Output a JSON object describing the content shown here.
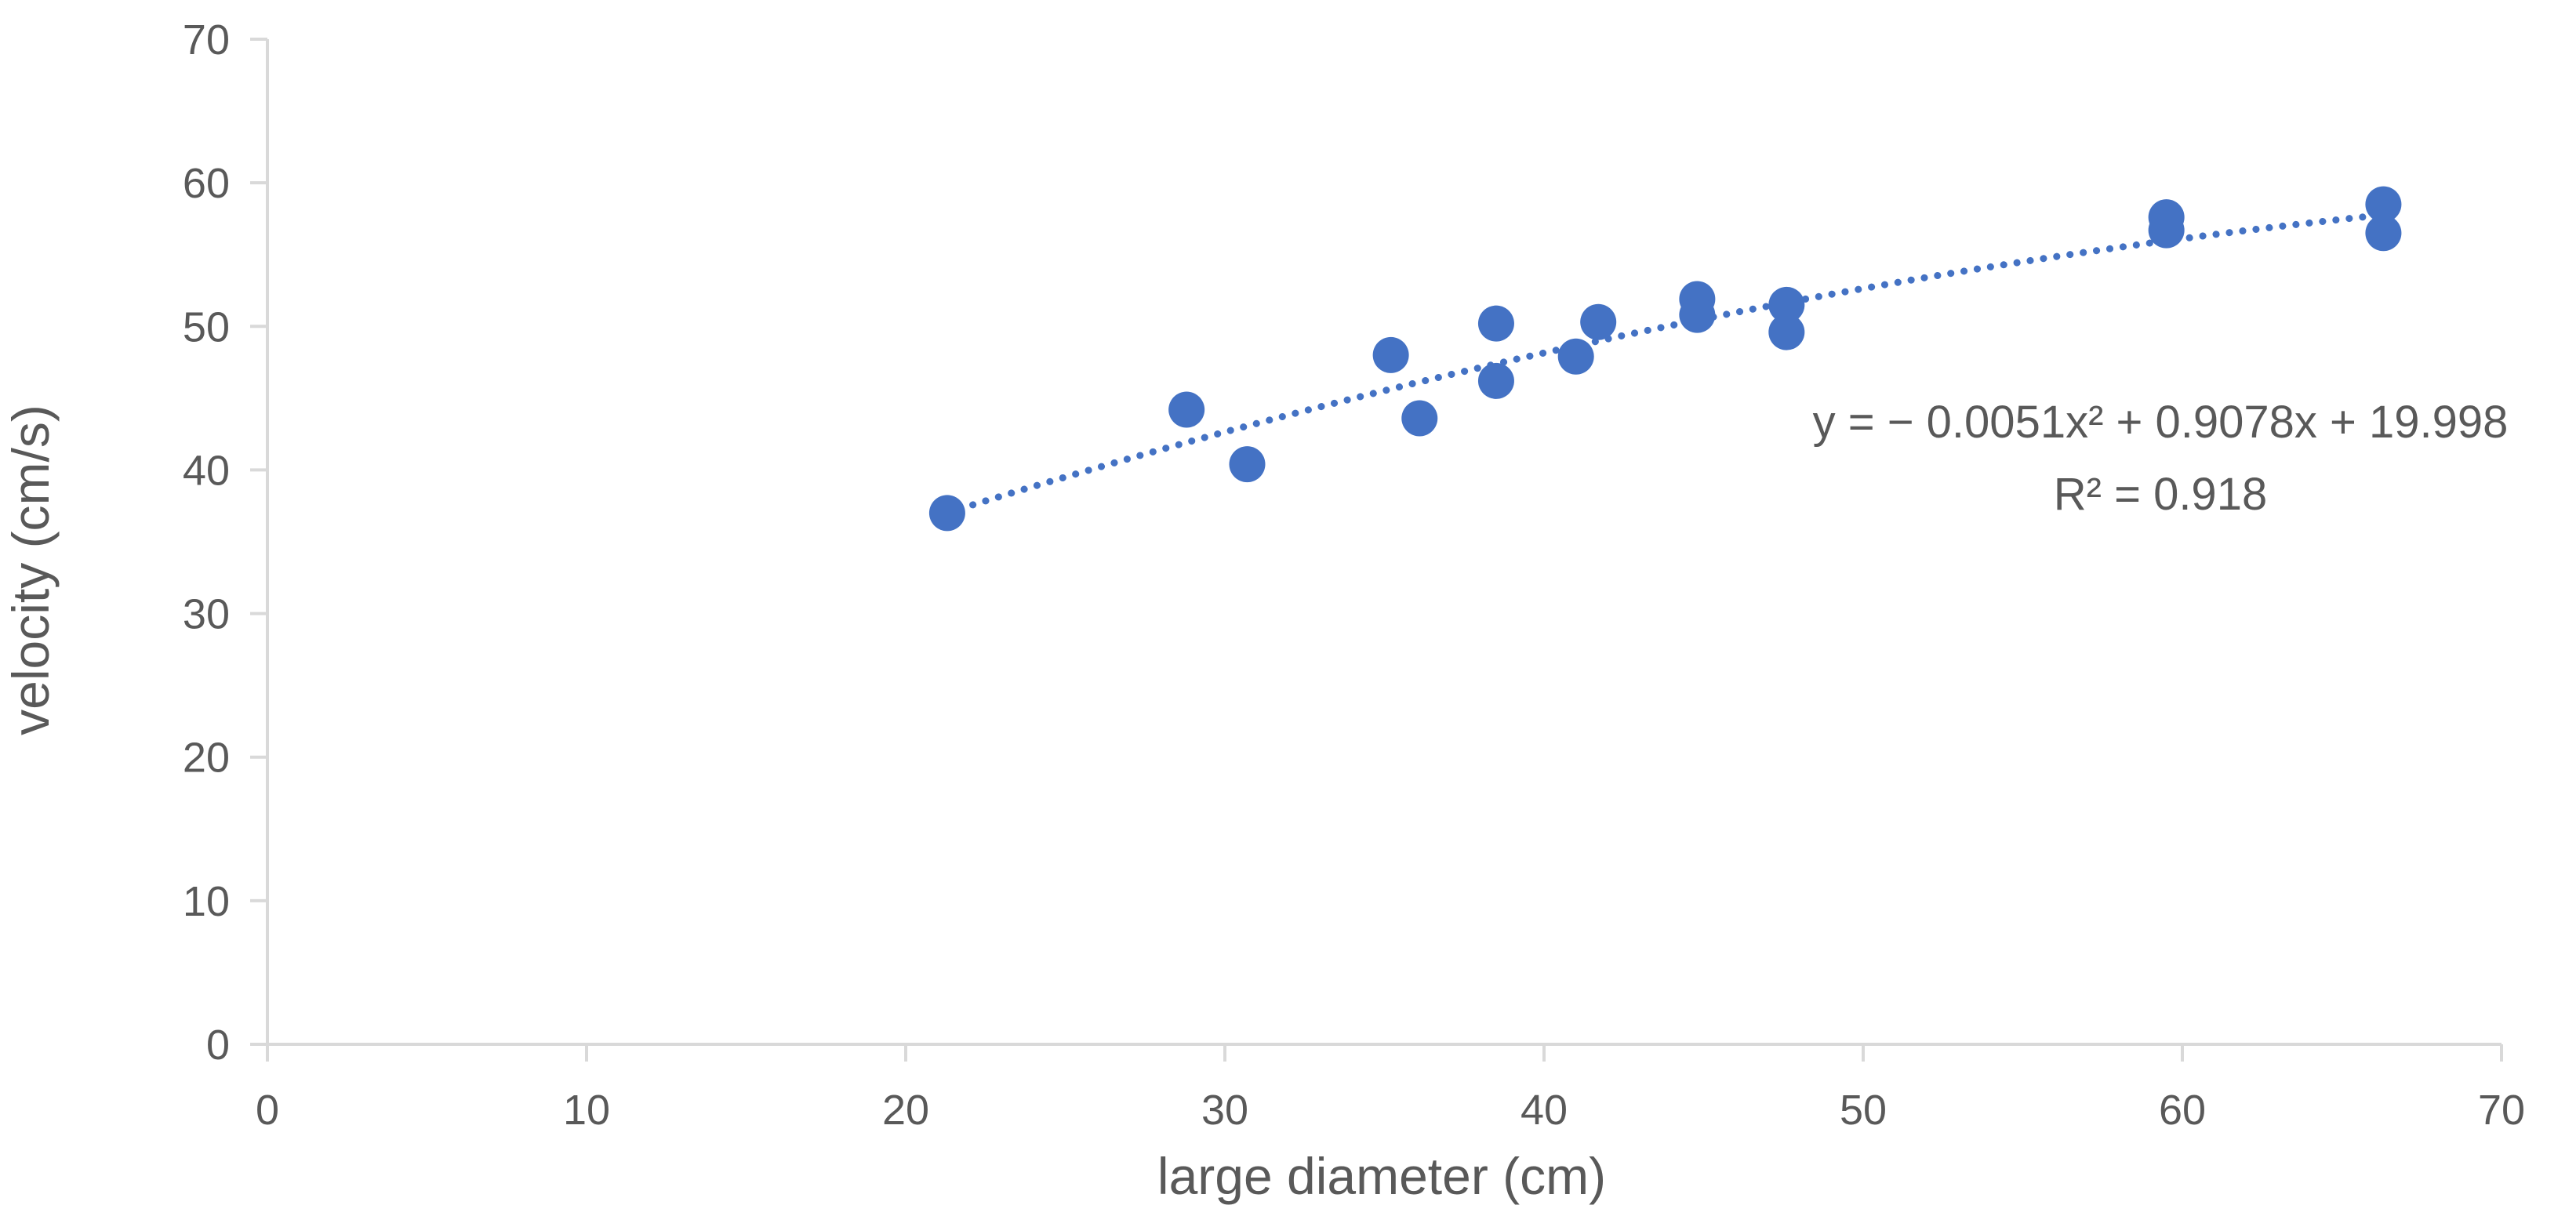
{
  "chart_data": {
    "type": "scatter",
    "title": "",
    "xlabel": "large diameter (cm)",
    "ylabel": "velocity (cm/s)",
    "xlim": [
      0,
      70
    ],
    "ylim": [
      0,
      70
    ],
    "x_ticks": [
      0,
      10,
      20,
      30,
      40,
      50,
      60,
      70
    ],
    "y_ticks": [
      0,
      10,
      20,
      30,
      40,
      50,
      60,
      70
    ],
    "grid": false,
    "legend": "none",
    "series": [
      {
        "color": "#4472C4",
        "points": [
          {
            "x": 21.3,
            "y": 37.0
          },
          {
            "x": 28.8,
            "y": 44.2
          },
          {
            "x": 30.7,
            "y": 40.4
          },
          {
            "x": 35.2,
            "y": 48.0
          },
          {
            "x": 36.1,
            "y": 43.6
          },
          {
            "x": 38.5,
            "y": 50.2
          },
          {
            "x": 38.5,
            "y": 46.2
          },
          {
            "x": 41.0,
            "y": 47.9
          },
          {
            "x": 41.7,
            "y": 50.3
          },
          {
            "x": 44.8,
            "y": 51.9
          },
          {
            "x": 44.8,
            "y": 50.8
          },
          {
            "x": 47.6,
            "y": 51.5
          },
          {
            "x": 47.6,
            "y": 49.6
          },
          {
            "x": 59.5,
            "y": 57.6
          },
          {
            "x": 59.5,
            "y": 56.7
          },
          {
            "x": 66.3,
            "y": 58.5
          },
          {
            "x": 66.3,
            "y": 56.5
          }
        ]
      }
    ],
    "trendline": {
      "type": "polynomial",
      "order": 2,
      "coefficients": {
        "a": -0.0051,
        "b": 0.9078,
        "c": 19.998
      },
      "x_range": [
        21.3,
        66.3
      ],
      "style": "dotted",
      "color": "#4472C4",
      "equation_label": "y = − 0.0051x² + 0.9078x + 19.998",
      "r2_label": "R² = 0.918"
    }
  }
}
